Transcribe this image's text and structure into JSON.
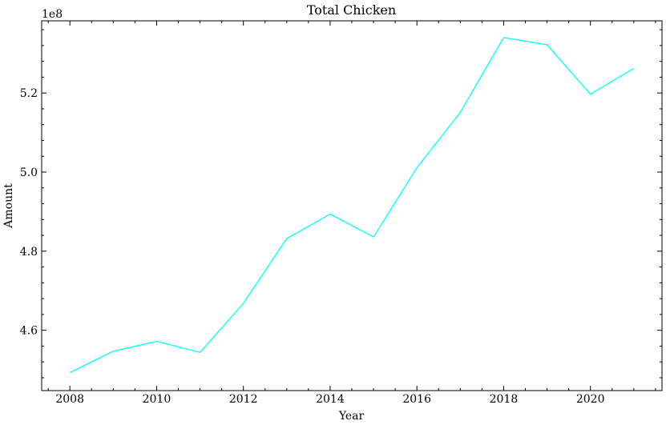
{
  "chart_data": {
    "type": "line",
    "title": "Total Chicken",
    "xlabel": "Year",
    "ylabel": "Amount",
    "y_offset_label": "1e8",
    "xlim": [
      2007.35,
      2021.65
    ],
    "ylim": [
      4.4475,
      5.3825
    ],
    "xticks": [
      2008,
      2010,
      2012,
      2014,
      2016,
      2018,
      2020
    ],
    "xtick_labels": [
      "2008",
      "2010",
      "2012",
      "2014",
      "2016",
      "2018",
      "2020"
    ],
    "yticks": [
      4.6,
      4.8,
      5.0,
      5.2
    ],
    "ytick_labels": [
      "4.6",
      "4.8",
      "5.0",
      "5.2"
    ],
    "grid": false,
    "series": [
      {
        "color": "#00ffff",
        "x": [
          2008,
          2009,
          2010,
          2011,
          2012,
          2013,
          2014,
          2015,
          2016,
          2017,
          2018,
          2019,
          2020,
          2021
        ],
        "y": [
          4.493,
          4.547,
          4.572,
          4.544,
          4.668,
          4.832,
          4.894,
          4.836,
          5.011,
          5.151,
          5.34,
          5.322,
          5.197,
          5.262
        ]
      }
    ]
  }
}
